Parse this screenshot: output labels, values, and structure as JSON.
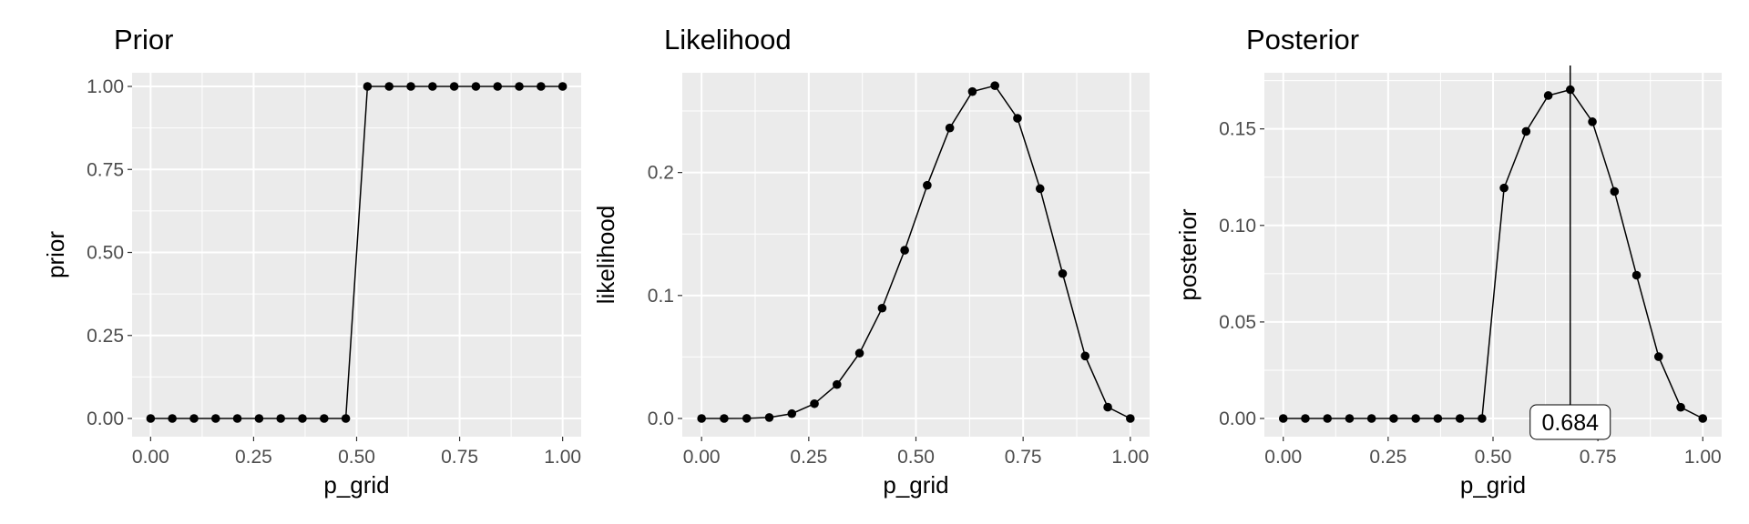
{
  "chart_data": [
    {
      "type": "line",
      "title": "Prior",
      "xlabel": "p_grid",
      "ylabel": "prior",
      "xlim": [
        0,
        1
      ],
      "ylim": [
        0,
        1
      ],
      "x_ticks": [
        0,
        0.25,
        0.5,
        0.75,
        1
      ],
      "x_tick_labels": [
        "0.00",
        "0.25",
        "0.50",
        "0.75",
        "1.00"
      ],
      "y_ticks": [
        0,
        0.25,
        0.5,
        0.75,
        1
      ],
      "y_tick_labels": [
        "0.00",
        "0.25",
        "0.50",
        "0.75",
        "1.00"
      ],
      "grid": true,
      "points": true,
      "x": [
        0,
        0.0526,
        0.1053,
        0.1579,
        0.2105,
        0.2632,
        0.3158,
        0.3684,
        0.4211,
        0.4737,
        0.5263,
        0.5789,
        0.6316,
        0.6842,
        0.7368,
        0.7895,
        0.8421,
        0.8947,
        0.9474,
        1
      ],
      "y": [
        0,
        0,
        0,
        0,
        0,
        0,
        0,
        0,
        0,
        0,
        1,
        1,
        1,
        1,
        1,
        1,
        1,
        1,
        1,
        1
      ]
    },
    {
      "type": "line",
      "title": "Likelihood",
      "xlabel": "p_grid",
      "ylabel": "likelihood",
      "xlim": [
        0,
        1
      ],
      "ylim": [
        0,
        0.27
      ],
      "x_ticks": [
        0,
        0.25,
        0.5,
        0.75,
        1
      ],
      "x_tick_labels": [
        "0.00",
        "0.25",
        "0.50",
        "0.75",
        "1.00"
      ],
      "y_ticks": [
        0,
        0.1,
        0.2
      ],
      "y_tick_labels": [
        "0.0",
        "0.1",
        "0.2"
      ],
      "grid": true,
      "points": true,
      "x": [
        0,
        0.0526,
        0.1053,
        0.1579,
        0.2105,
        0.2632,
        0.3158,
        0.3684,
        0.4211,
        0.4737,
        0.5263,
        0.5789,
        0.6316,
        0.6842,
        0.7368,
        0.7895,
        0.8421,
        0.8947,
        0.9474,
        1
      ],
      "y": [
        0,
        0,
        0.0001,
        0.0008,
        0.0039,
        0.012,
        0.0276,
        0.0531,
        0.0897,
        0.1368,
        0.1896,
        0.2362,
        0.2658,
        0.2706,
        0.2441,
        0.1869,
        0.1178,
        0.0508,
        0.0092,
        0
      ]
    },
    {
      "type": "line",
      "title": "Posterior",
      "xlabel": "p_grid",
      "ylabel": "posterior",
      "xlim": [
        0,
        1
      ],
      "ylim": [
        0,
        0.172
      ],
      "x_ticks": [
        0,
        0.25,
        0.5,
        0.75,
        1
      ],
      "x_tick_labels": [
        "0.00",
        "0.25",
        "0.50",
        "0.75",
        "1.00"
      ],
      "y_ticks": [
        0,
        0.05,
        0.1,
        0.15
      ],
      "y_tick_labels": [
        "0.00",
        "0.05",
        "0.10",
        "0.15"
      ],
      "grid": true,
      "points": true,
      "x": [
        0,
        0.0526,
        0.1053,
        0.1579,
        0.2105,
        0.2632,
        0.3158,
        0.3684,
        0.4211,
        0.4737,
        0.5263,
        0.5789,
        0.6316,
        0.6842,
        0.7368,
        0.7895,
        0.8421,
        0.8947,
        0.9474,
        1
      ],
      "y": [
        0,
        0,
        0,
        0,
        0,
        0,
        0,
        0,
        0,
        0,
        0.1194,
        0.1487,
        0.1673,
        0.1703,
        0.1537,
        0.1176,
        0.0742,
        0.032,
        0.0058,
        0
      ],
      "vline": {
        "x": 0.684,
        "label": "0.684"
      }
    }
  ]
}
